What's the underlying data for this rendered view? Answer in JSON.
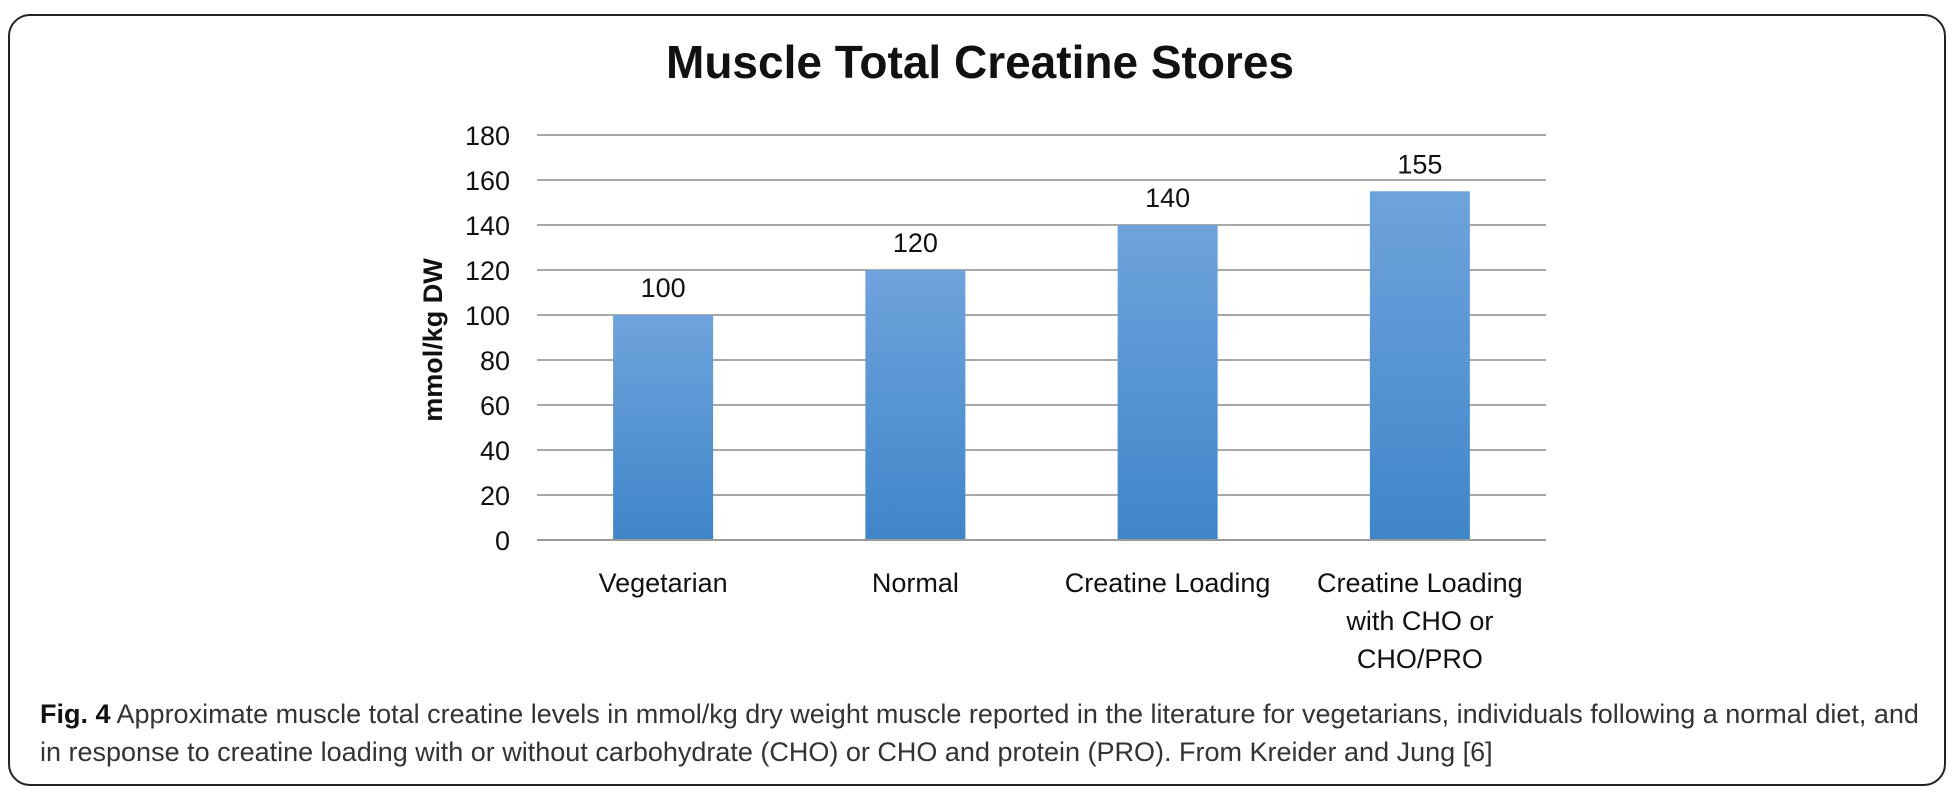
{
  "chart_data": {
    "type": "bar",
    "title": "Muscle Total Creatine Stores",
    "ylabel": "mmol/kg DW",
    "xlabel": "",
    "ylim": [
      0,
      180
    ],
    "ytick_step": 20,
    "yticks": [
      "0",
      "20",
      "40",
      "60",
      "80",
      "100",
      "120",
      "140",
      "160",
      "180"
    ],
    "categories": [
      "Vegetarian",
      "Normal",
      "Creatine Loading",
      "Creatine Loading with CHO or CHO/PRO"
    ],
    "category_lines": [
      [
        "Vegetarian"
      ],
      [
        "Normal"
      ],
      [
        "Creatine Loading"
      ],
      [
        "Creatine Loading",
        "with CHO or",
        "CHO/PRO"
      ]
    ],
    "values": [
      100,
      120,
      140,
      155
    ],
    "data_labels": [
      "100",
      "120",
      "140",
      "155"
    ],
    "grid": true,
    "legend": "none",
    "bar_color_top": "#6fa3dc",
    "bar_color_bottom": "#3f86c9"
  },
  "caption": {
    "label": "Fig. 4",
    "text": " Approximate muscle total creatine levels in mmol/kg dry weight muscle reported in the literature for vegetarians, individuals following a normal diet, and in response to creatine loading with or without carbohydrate (CHO) or CHO and protein (PRO). From Kreider and Jung [6]"
  }
}
